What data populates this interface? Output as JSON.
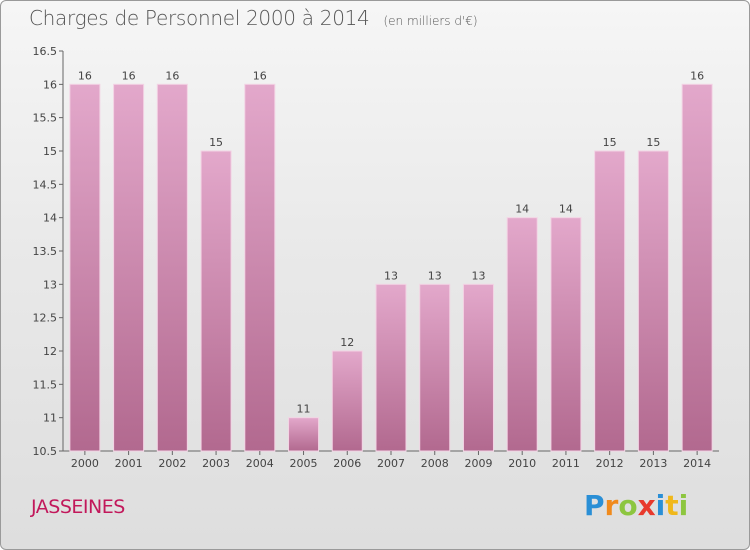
{
  "header": {
    "title": "Charges de Personnel 2000 à 2014",
    "subtitle": "(en milliers d'€)"
  },
  "footer": {
    "commune": "JASSEINES",
    "brand": "Proxiti",
    "brand_letters": [
      {
        "ch": "P",
        "color": "#2a8fd6"
      },
      {
        "ch": "r",
        "color": "#f08a1c"
      },
      {
        "ch": "o",
        "color": "#8dc63f"
      },
      {
        "ch": "x",
        "color": "#e8392c"
      },
      {
        "ch": "i",
        "color": "#2a8fd6"
      },
      {
        "ch": "t",
        "color": "#f0b81c"
      },
      {
        "ch": "i",
        "color": "#8dc63f"
      }
    ]
  },
  "colors": {
    "bar_top": "#e3a8cb",
    "bar_bottom": "#b2698f",
    "bar_edge": "#f3d3e4",
    "axis": "#666666",
    "commune": "#c2185b"
  },
  "chart_data": {
    "type": "bar",
    "categories": [
      "2000",
      "2001",
      "2002",
      "2003",
      "2004",
      "2005",
      "2006",
      "2007",
      "2008",
      "2009",
      "2010",
      "2011",
      "2012",
      "2013",
      "2014"
    ],
    "values": [
      16,
      16,
      16,
      15,
      16,
      11,
      12,
      13,
      13,
      13,
      14,
      14,
      15,
      15,
      16
    ],
    "data_labels": [
      "16",
      "16",
      "16",
      "15",
      "16",
      "11",
      "12",
      "13",
      "13",
      "13",
      "14",
      "14",
      "15",
      "15",
      "16"
    ],
    "ylim": [
      10.5,
      16.5
    ],
    "yticks": [
      10.5,
      11,
      11.5,
      12,
      12.5,
      13,
      13.5,
      14,
      14.5,
      15,
      15.5,
      16,
      16.5
    ],
    "ytick_labels": [
      "10.5",
      "11",
      "11.5",
      "12",
      "12.5",
      "13",
      "13.5",
      "14",
      "14.5",
      "15",
      "15.5",
      "16",
      "16.5"
    ],
    "xlabel": "",
    "ylabel": "",
    "grid": false,
    "legend": "none"
  }
}
